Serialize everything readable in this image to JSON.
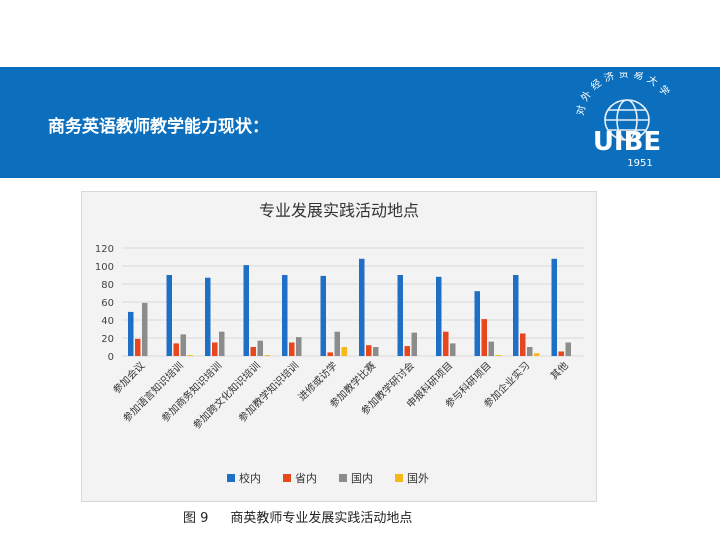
{
  "slide": {
    "title": "商务英语教师教学能力现状：",
    "logo": {
      "text": "UIBE",
      "year": "1951",
      "arc_text": "对外经济贸易大学"
    }
  },
  "caption": {
    "label": "图 9",
    "text": "商英教师专业发展实践活动地点"
  },
  "colors": {
    "banner": "#0b6fbe",
    "series": [
      "#1f6fc5",
      "#e8461d",
      "#8c8c8c",
      "#f5b719"
    ]
  },
  "chart_data": {
    "type": "bar",
    "title": "专业发展实践活动地点",
    "categories": [
      "参加会议",
      "参加语言知识培训",
      "参加商务知识培训",
      "参加跨文化知识培训",
      "参加教学知识培训",
      "进修或访学",
      "参加教学比赛",
      "参加教学研讨会",
      "申报科研项目",
      "参与科研项目",
      "参加企业实习",
      "其他"
    ],
    "series": [
      {
        "name": "校内",
        "values": [
          49,
          90,
          87,
          101,
          90,
          89,
          108,
          90,
          88,
          72,
          90,
          108
        ]
      },
      {
        "name": "省内",
        "values": [
          19,
          14,
          15,
          10,
          15,
          4,
          12,
          11,
          27,
          41,
          25,
          5
        ]
      },
      {
        "name": "国内",
        "values": [
          59,
          24,
          27,
          17,
          21,
          27,
          10,
          26,
          14,
          16,
          10,
          15
        ]
      },
      {
        "name": "国外",
        "values": [
          0,
          1,
          0,
          1,
          0,
          10,
          0,
          0,
          0,
          1,
          3,
          0
        ]
      }
    ],
    "ylim": [
      0,
      120
    ],
    "yticks": [
      0,
      20,
      40,
      60,
      80,
      100,
      120
    ],
    "grid": true,
    "legend": "bottom"
  }
}
